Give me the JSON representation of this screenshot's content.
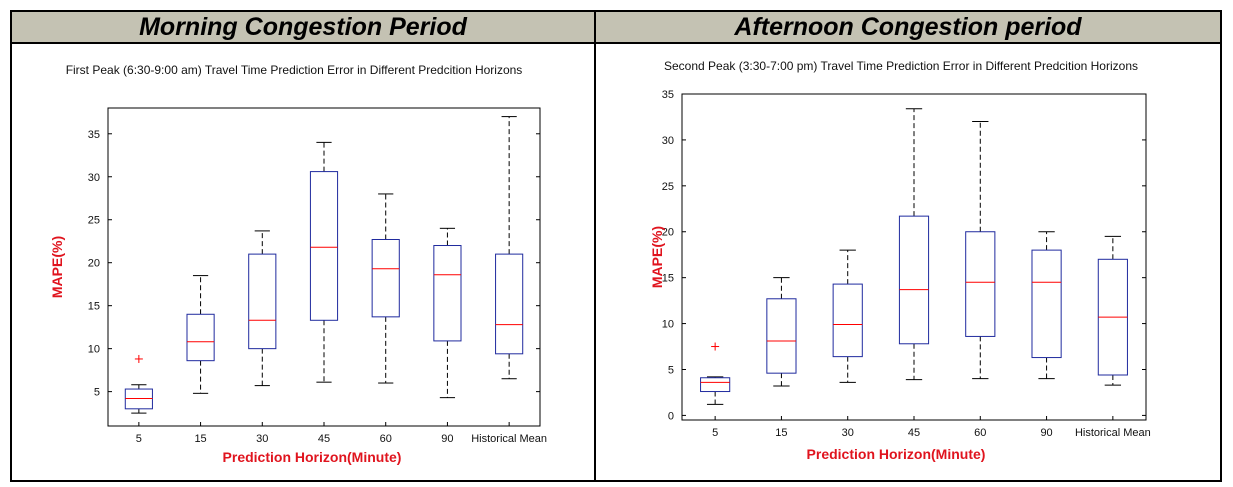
{
  "panels": [
    {
      "header": "Morning Congestion Period"
    },
    {
      "header": "Afternoon Congestion period"
    }
  ],
  "colors": {
    "box": "#1f2a9e",
    "median": "#ff0000",
    "whisker": "#000000",
    "label": "#e0141e",
    "header_bg": "#c4c2b3"
  },
  "chart_data": [
    {
      "type": "boxplot",
      "title": "First Peak (6:30-9:00 am) Travel Time Prediction Error in Different Predcition Horizons",
      "xlabel": "Prediction Horizon(Minute)",
      "ylabel": "MAPE(%)",
      "ylim": [
        1,
        38
      ],
      "yticks": [
        5,
        10,
        15,
        20,
        25,
        30,
        35
      ],
      "categories": [
        "5",
        "15",
        "30",
        "45",
        "60",
        "90",
        "Historical Mean"
      ],
      "boxes": [
        {
          "whisker_low": 2.5,
          "q1": 3.0,
          "median": 4.2,
          "q3": 5.3,
          "whisker_high": 5.8,
          "outliers": [
            8.8
          ]
        },
        {
          "whisker_low": 4.8,
          "q1": 8.6,
          "median": 10.8,
          "q3": 14.0,
          "whisker_high": 18.5,
          "outliers": []
        },
        {
          "whisker_low": 5.7,
          "q1": 10.0,
          "median": 13.3,
          "q3": 21.0,
          "whisker_high": 23.7,
          "outliers": []
        },
        {
          "whisker_low": 6.1,
          "q1": 13.3,
          "median": 21.8,
          "q3": 30.6,
          "whisker_high": 34.0,
          "outliers": []
        },
        {
          "whisker_low": 6.0,
          "q1": 13.7,
          "median": 19.3,
          "q3": 22.7,
          "whisker_high": 28.0,
          "outliers": []
        },
        {
          "whisker_low": 4.3,
          "q1": 10.9,
          "median": 18.6,
          "q3": 22.0,
          "whisker_high": 24.0,
          "outliers": []
        },
        {
          "whisker_low": 6.5,
          "q1": 9.4,
          "median": 12.8,
          "q3": 21.0,
          "whisker_high": 37.0,
          "outliers": []
        }
      ]
    },
    {
      "type": "boxplot",
      "title": "Second Peak (3:30-7:00 pm) Travel Time Prediction Error in Different Predcition Horizons",
      "xlabel": "Prediction Horizon(Minute)",
      "ylabel": "MAPE(%)",
      "ylim": [
        -0.5,
        35
      ],
      "yticks": [
        0,
        5,
        10,
        15,
        20,
        25,
        30,
        35
      ],
      "categories": [
        "5",
        "15",
        "30",
        "45",
        "60",
        "90",
        "Historical Mean"
      ],
      "boxes": [
        {
          "whisker_low": 1.2,
          "q1": 2.6,
          "median": 3.6,
          "q3": 4.1,
          "whisker_high": 4.2,
          "outliers": [
            7.5
          ]
        },
        {
          "whisker_low": 3.2,
          "q1": 4.6,
          "median": 8.1,
          "q3": 12.7,
          "whisker_high": 15.0,
          "outliers": []
        },
        {
          "whisker_low": 3.6,
          "q1": 6.4,
          "median": 9.9,
          "q3": 14.3,
          "whisker_high": 18.0,
          "outliers": []
        },
        {
          "whisker_low": 3.9,
          "q1": 7.8,
          "median": 13.7,
          "q3": 21.7,
          "whisker_high": 33.4,
          "outliers": []
        },
        {
          "whisker_low": 4.0,
          "q1": 8.6,
          "median": 14.5,
          "q3": 20.0,
          "whisker_high": 32.0,
          "outliers": []
        },
        {
          "whisker_low": 4.0,
          "q1": 6.3,
          "median": 14.5,
          "q3": 18.0,
          "whisker_high": 20.0,
          "outliers": []
        },
        {
          "whisker_low": 3.3,
          "q1": 4.4,
          "median": 10.7,
          "q3": 17.0,
          "whisker_high": 19.5,
          "outliers": []
        }
      ]
    }
  ]
}
